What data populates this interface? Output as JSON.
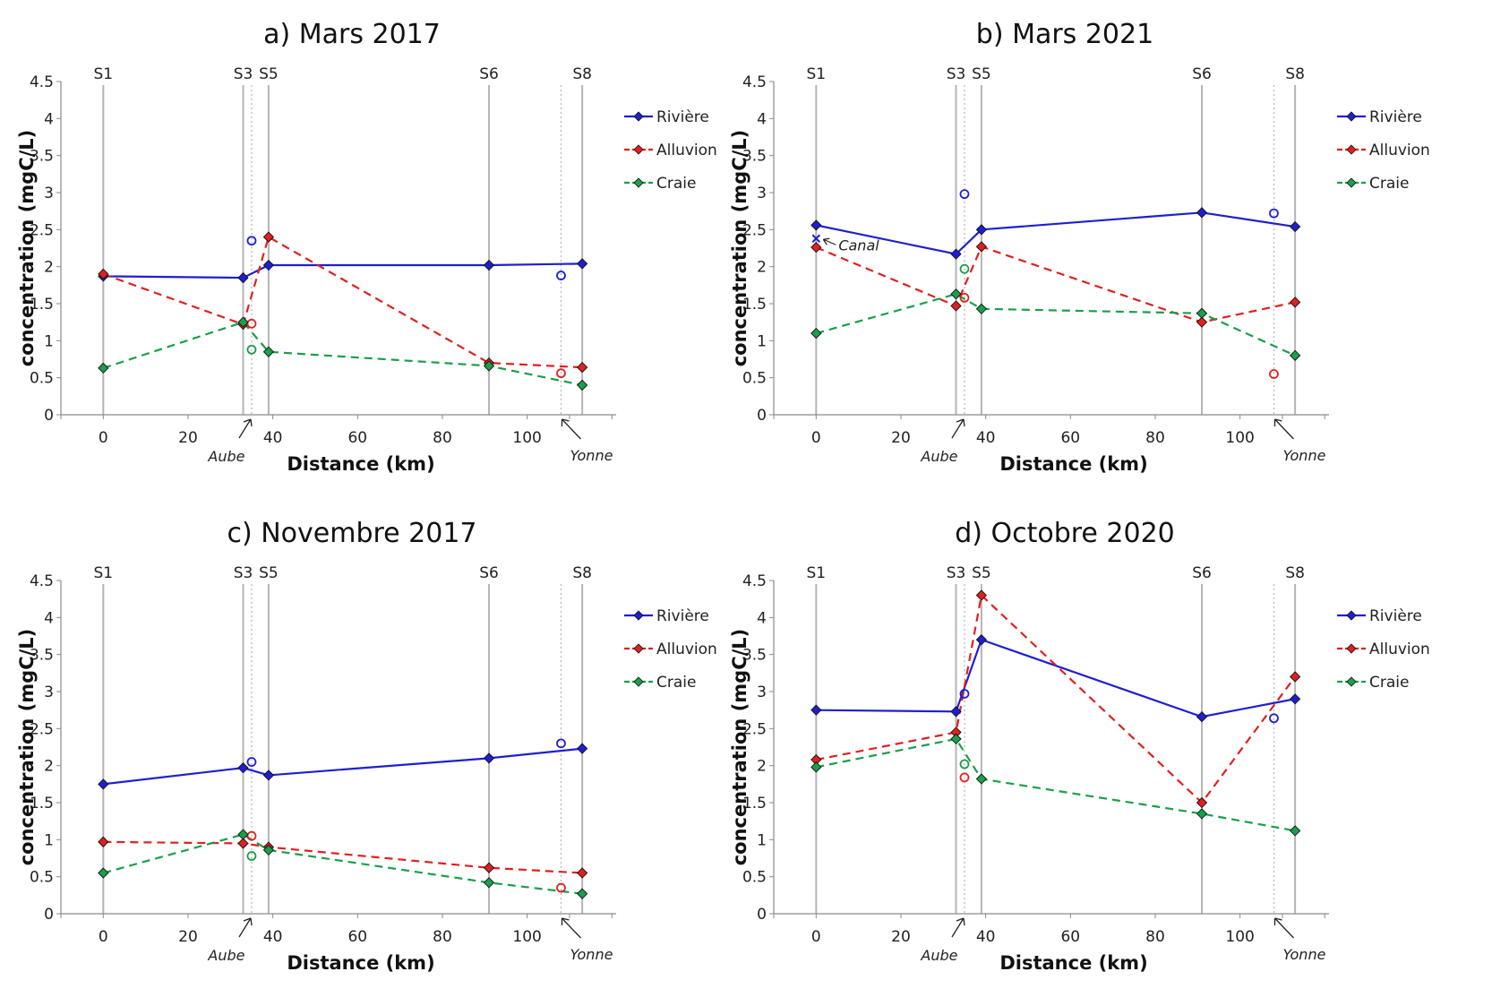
{
  "figure": {
    "colors": {
      "riviere": "#1f1fd0",
      "alluvion": "#e02020",
      "craie": "#1a9f4a",
      "grid": "#b5b5b5"
    },
    "stations": [
      {
        "label": "S1",
        "km": 0,
        "style": "solid"
      },
      {
        "label": "S3",
        "km": 33,
        "style": "solid"
      },
      {
        "label": "",
        "km": 35,
        "style": "dotted"
      },
      {
        "label": "S5",
        "km": 39,
        "style": "solid"
      },
      {
        "label": "S6",
        "km": 91,
        "style": "solid"
      },
      {
        "label": "",
        "km": 108,
        "style": "dotted"
      },
      {
        "label": "S8",
        "km": 113,
        "style": "solid"
      }
    ],
    "annotations": {
      "aube": "Aube",
      "yonne": "Yonne",
      "canal": "Canal"
    }
  },
  "chart_data": [
    {
      "type": "line",
      "title": "a) Mars 2017",
      "xlabel": "Distance (km)",
      "ylabel": "concentration (mgC/L)",
      "xlim": [
        -10,
        121
      ],
      "ylim": [
        0,
        4.5
      ],
      "xticks": [
        "0",
        "20",
        "40",
        "60",
        "80",
        "100"
      ],
      "yticks": [
        "0",
        "0.5",
        "1",
        "1.5",
        "2",
        "2.5",
        "3",
        "3.5",
        "4",
        "4.5"
      ],
      "legend": "right",
      "series": [
        {
          "name": "Rivière",
          "x": [
            0,
            33,
            39,
            91,
            113
          ],
          "values": [
            1.87,
            1.85,
            2.02,
            2.02,
            2.04
          ],
          "tributaries": [
            {
              "x": 35,
              "y": 2.35
            },
            {
              "x": 108,
              "y": 1.88
            }
          ]
        },
        {
          "name": "Alluvion",
          "x": [
            0,
            33,
            39,
            91,
            113
          ],
          "values": [
            1.9,
            1.22,
            2.4,
            0.7,
            0.64
          ],
          "tributaries": [
            {
              "x": 35,
              "y": 1.23
            },
            {
              "x": 108,
              "y": 0.56
            }
          ]
        },
        {
          "name": "Craie",
          "x": [
            0,
            33,
            39,
            91,
            113
          ],
          "values": [
            0.63,
            1.25,
            0.85,
            0.66,
            0.4
          ],
          "tributaries": [
            {
              "x": 35,
              "y": 0.88
            }
          ]
        }
      ]
    },
    {
      "type": "line",
      "title": "b) Mars 2021",
      "xlabel": "Distance (km)",
      "ylabel": "concentration (mgC/L)",
      "xlim": [
        -10,
        121
      ],
      "ylim": [
        0,
        4.5
      ],
      "xticks": [
        "0",
        "20",
        "40",
        "60",
        "80",
        "100"
      ],
      "yticks": [
        "0",
        "0.5",
        "1",
        "1.5",
        "2",
        "2.5",
        "3",
        "3.5",
        "4",
        "4.5"
      ],
      "legend": "right",
      "canal": {
        "x": 0,
        "y": 2.38
      },
      "series": [
        {
          "name": "Rivière",
          "x": [
            0,
            33,
            39,
            91,
            113
          ],
          "values": [
            2.56,
            2.17,
            2.5,
            2.73,
            2.54
          ],
          "tributaries": [
            {
              "x": 35,
              "y": 2.98
            },
            {
              "x": 108,
              "y": 2.72
            }
          ]
        },
        {
          "name": "Alluvion",
          "x": [
            0,
            33,
            39,
            91,
            113
          ],
          "values": [
            2.26,
            1.47,
            2.27,
            1.25,
            1.52
          ],
          "tributaries": [
            {
              "x": 35,
              "y": 1.58
            },
            {
              "x": 108,
              "y": 0.55
            }
          ]
        },
        {
          "name": "Craie",
          "x": [
            0,
            33,
            39,
            91,
            113
          ],
          "values": [
            1.1,
            1.63,
            1.43,
            1.37,
            0.8
          ],
          "tributaries": [
            {
              "x": 35,
              "y": 1.97
            }
          ]
        }
      ]
    },
    {
      "type": "line",
      "title": "c) Novembre 2017",
      "xlabel": "Distance (km)",
      "ylabel": "concentration (mgC/L)",
      "xlim": [
        -10,
        121
      ],
      "ylim": [
        0,
        4.5
      ],
      "xticks": [
        "0",
        "20",
        "40",
        "60",
        "80",
        "100"
      ],
      "yticks": [
        "0",
        "0.5",
        "1",
        "1.5",
        "2",
        "2.5",
        "3",
        "3.5",
        "4",
        "4.5"
      ],
      "legend": "right",
      "series": [
        {
          "name": "Rivière",
          "x": [
            0,
            33,
            39,
            91,
            113
          ],
          "values": [
            1.75,
            1.97,
            1.87,
            2.1,
            2.23
          ],
          "tributaries": [
            {
              "x": 35,
              "y": 2.05
            },
            {
              "x": 108,
              "y": 2.3
            }
          ]
        },
        {
          "name": "Alluvion",
          "x": [
            0,
            33,
            39,
            91,
            113
          ],
          "values": [
            0.97,
            0.95,
            0.9,
            0.62,
            0.55
          ],
          "tributaries": [
            {
              "x": 35,
              "y": 1.05
            },
            {
              "x": 108,
              "y": 0.35
            }
          ]
        },
        {
          "name": "Craie",
          "x": [
            0,
            33,
            39,
            91,
            113
          ],
          "values": [
            0.55,
            1.07,
            0.86,
            0.42,
            0.27
          ],
          "tributaries": [
            {
              "x": 35,
              "y": 0.78
            }
          ]
        }
      ]
    },
    {
      "type": "line",
      "title": "d) Octobre 2020",
      "xlabel": "Distance (km)",
      "ylabel": "concentration (mgC/L)",
      "xlim": [
        -10,
        121
      ],
      "ylim": [
        0,
        4.5
      ],
      "xticks": [
        "0",
        "20",
        "40",
        "60",
        "80",
        "100"
      ],
      "yticks": [
        "0",
        "0.5",
        "1",
        "1.5",
        "2",
        "2.5",
        "3",
        "3.5",
        "4",
        "4.5"
      ],
      "legend": "right",
      "series": [
        {
          "name": "Rivière",
          "x": [
            0,
            33,
            39,
            91,
            113
          ],
          "values": [
            2.75,
            2.73,
            3.7,
            2.66,
            2.9
          ],
          "tributaries": [
            {
              "x": 35,
              "y": 2.97
            },
            {
              "x": 108,
              "y": 2.64
            }
          ]
        },
        {
          "name": "Alluvion",
          "x": [
            0,
            33,
            39,
            91,
            113
          ],
          "values": [
            2.08,
            2.45,
            4.3,
            1.5,
            3.2
          ],
          "tributaries": [
            {
              "x": 35,
              "y": 1.84
            }
          ]
        },
        {
          "name": "Craie",
          "x": [
            0,
            33,
            39,
            91,
            113
          ],
          "values": [
            1.98,
            2.36,
            1.82,
            1.35,
            1.12
          ],
          "tributaries": [
            {
              "x": 35,
              "y": 2.02
            }
          ]
        }
      ]
    }
  ]
}
